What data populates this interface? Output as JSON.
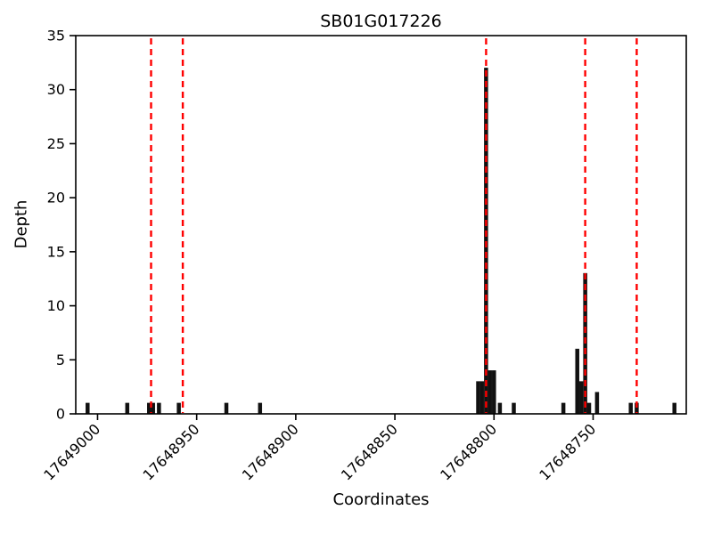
{
  "chart_data": {
    "type": "bar",
    "title": "SB01G017226",
    "xlabel": "Coordinates",
    "ylabel": "Depth",
    "ylim": [
      0,
      35
    ],
    "yticks": [
      0,
      5,
      10,
      15,
      20,
      25,
      30,
      35
    ],
    "xlim": [
      17649011,
      17648703
    ],
    "x_axis_reversed": true,
    "grid": false,
    "legend": "none",
    "xticks": [
      17649000,
      17648950,
      17648900,
      17648850,
      17648800,
      17648750
    ],
    "bars": [
      {
        "x": 17649005,
        "d": 1
      },
      {
        "x": 17648985,
        "d": 1
      },
      {
        "x": 17648974,
        "d": 1
      },
      {
        "x": 17648972,
        "d": 1
      },
      {
        "x": 17648969,
        "d": 1
      },
      {
        "x": 17648959,
        "d": 1
      },
      {
        "x": 17648935,
        "d": 1
      },
      {
        "x": 17648918,
        "d": 1
      },
      {
        "x": 17648808,
        "d": 3
      },
      {
        "x": 17648806,
        "d": 3
      },
      {
        "x": 17648804,
        "d": 32
      },
      {
        "x": 17648802,
        "d": 4
      },
      {
        "x": 17648800,
        "d": 4
      },
      {
        "x": 17648797,
        "d": 1
      },
      {
        "x": 17648790,
        "d": 1
      },
      {
        "x": 17648765,
        "d": 1
      },
      {
        "x": 17648758,
        "d": 6
      },
      {
        "x": 17648756,
        "d": 3
      },
      {
        "x": 17648754,
        "d": 13
      },
      {
        "x": 17648752,
        "d": 1
      },
      {
        "x": 17648748,
        "d": 2
      },
      {
        "x": 17648731,
        "d": 1
      },
      {
        "x": 17648728,
        "d": 1
      },
      {
        "x": 17648709,
        "d": 1
      }
    ],
    "red_dashed_lines": [
      17648973,
      17648957,
      17648804,
      17648754,
      17648728
    ],
    "colors": {
      "bar": "#111111",
      "dashed_line": "#ff0000",
      "axis": "#000000",
      "background": "#ffffff"
    }
  }
}
